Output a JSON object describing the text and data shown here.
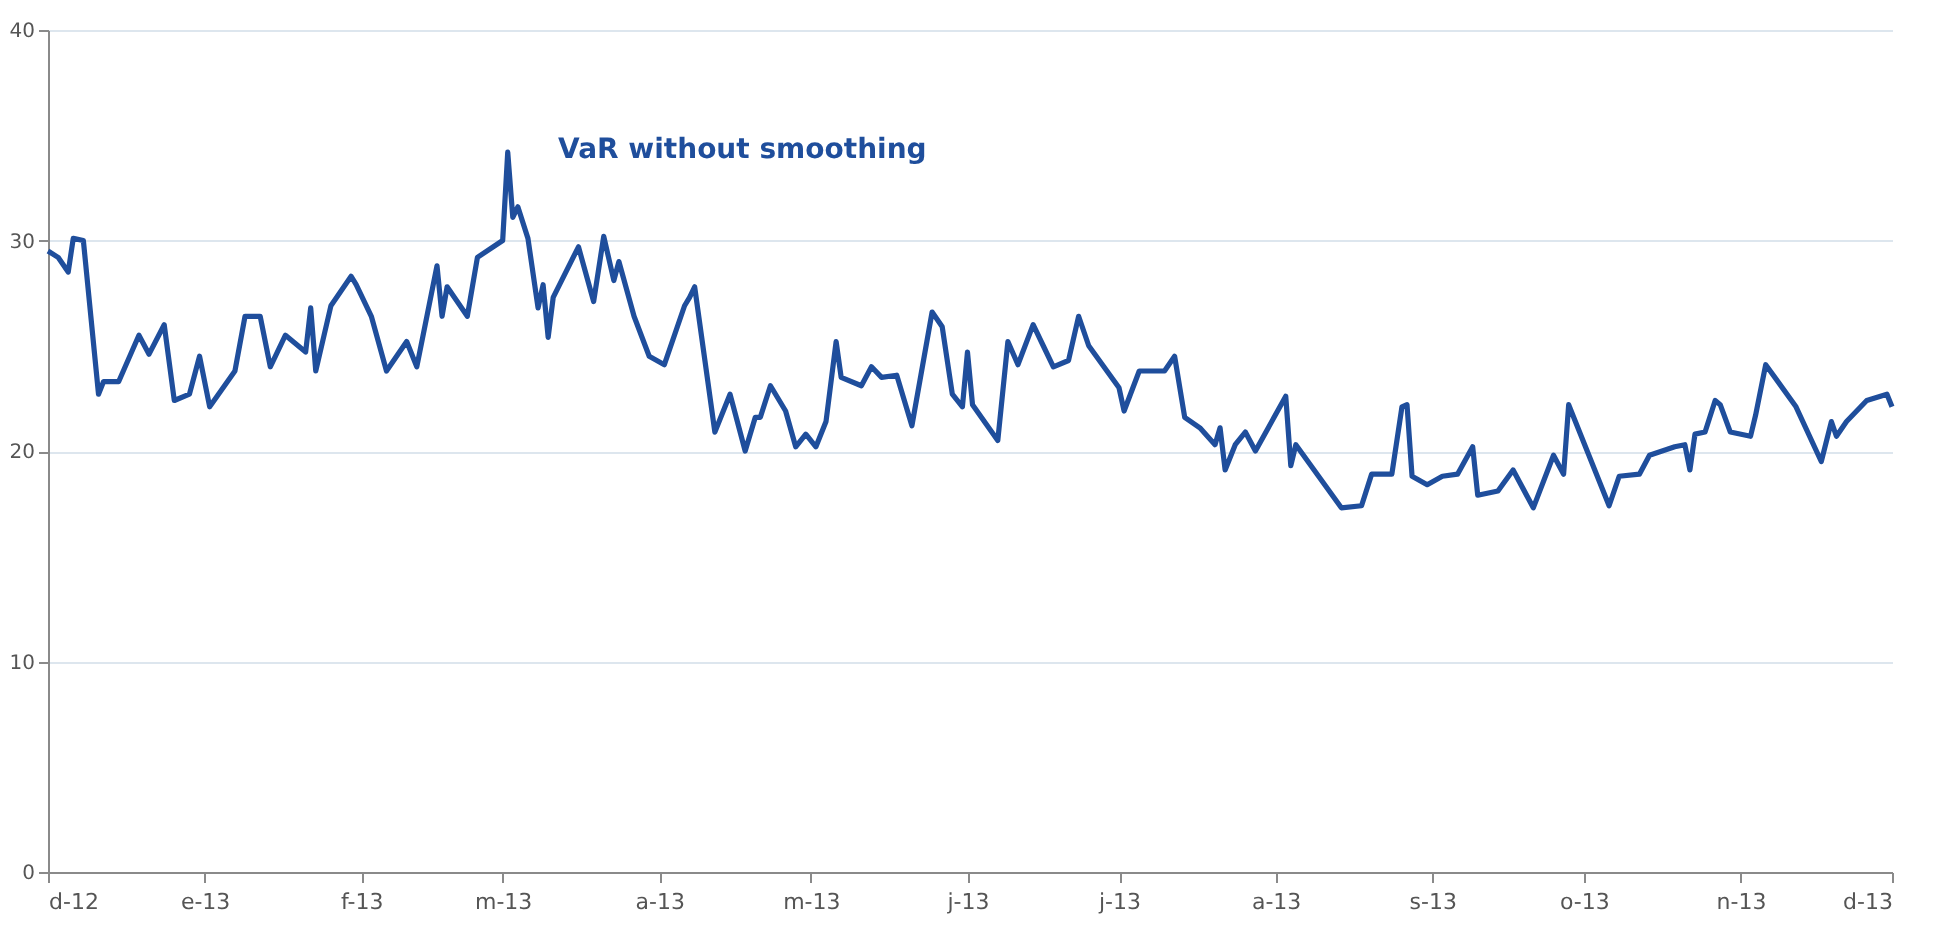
{
  "chart_data": {
    "type": "line",
    "x": [
      "2012-12-01",
      "2012-12-03",
      "2012-12-05",
      "2012-12-06",
      "2012-12-08",
      "2012-12-11",
      "2012-12-12",
      "2012-12-15",
      "2012-12-19",
      "2012-12-21",
      "2012-12-24",
      "2012-12-26",
      "2012-12-29",
      "2012-12-31",
      "2013-01-02",
      "2013-01-07",
      "2013-01-09",
      "2013-01-12",
      "2013-01-14",
      "2013-01-17",
      "2013-01-21",
      "2013-01-22",
      "2013-01-23",
      "2013-01-26",
      "2013-01-30",
      "2013-01-31",
      "2013-02-03",
      "2013-02-06",
      "2013-02-10",
      "2013-02-12",
      "2013-02-16",
      "2013-02-17",
      "2013-02-18",
      "2013-02-22",
      "2013-02-24",
      "2013-03-01",
      "2013-03-02",
      "2013-03-03",
      "2013-03-04",
      "2013-03-06",
      "2013-03-08",
      "2013-03-09",
      "2013-03-10",
      "2013-03-11",
      "2013-03-16",
      "2013-03-19",
      "2013-03-21",
      "2013-03-23",
      "2013-03-24",
      "2013-03-27",
      "2013-03-30",
      "2013-04-02",
      "2013-04-06",
      "2013-04-07",
      "2013-04-08",
      "2013-04-12",
      "2013-04-15",
      "2013-04-18",
      "2013-04-20",
      "2013-04-21",
      "2013-04-23",
      "2013-04-26",
      "2013-04-28",
      "2013-04-30",
      "2013-05-02",
      "2013-05-04",
      "2013-05-06",
      "2013-05-07",
      "2013-05-11",
      "2013-05-13",
      "2013-05-15",
      "2013-05-18",
      "2013-05-21",
      "2013-05-25",
      "2013-05-27",
      "2013-05-29",
      "2013-05-31",
      "2013-06-01",
      "2013-06-02",
      "2013-06-07",
      "2013-06-09",
      "2013-06-11",
      "2013-06-14",
      "2013-06-16",
      "2013-06-18",
      "2013-06-21",
      "2013-06-23",
      "2013-06-25",
      "2013-07-01",
      "2013-07-02",
      "2013-07-05",
      "2013-07-10",
      "2013-07-12",
      "2013-07-14",
      "2013-07-17",
      "2013-07-20",
      "2013-07-21",
      "2013-07-22",
      "2013-07-24",
      "2013-07-26",
      "2013-07-28",
      "2013-08-03",
      "2013-08-04",
      "2013-08-05",
      "2013-08-14",
      "2013-08-18",
      "2013-08-20",
      "2013-08-24",
      "2013-08-26",
      "2013-08-27",
      "2013-08-28",
      "2013-08-31",
      "2013-09-03",
      "2013-09-06",
      "2013-09-09",
      "2013-09-10",
      "2013-09-14",
      "2013-09-17",
      "2013-09-21",
      "2013-09-25",
      "2013-09-27",
      "2013-09-28",
      "2013-10-02",
      "2013-10-06",
      "2013-10-08",
      "2013-10-12",
      "2013-10-14",
      "2013-10-19",
      "2013-10-21",
      "2013-10-22",
      "2013-10-23",
      "2013-10-25",
      "2013-10-27",
      "2013-10-28",
      "2013-10-30",
      "2013-11-03",
      "2013-11-04",
      "2013-11-06",
      "2013-11-12",
      "2013-11-17",
      "2013-11-19",
      "2013-11-20",
      "2013-11-22",
      "2013-11-26",
      "2013-11-30",
      "2013-12-01"
    ],
    "series": [
      {
        "name": "VaR without smoothing",
        "color": "#1f4e9c",
        "values": [
          29.5,
          29.2,
          28.5,
          30.1,
          30,
          22.7,
          23.3,
          23.3,
          25.5,
          24.6,
          26,
          22.4,
          22.7,
          24.5,
          22.1,
          23.8,
          26.4,
          26.4,
          24,
          25.5,
          24.7,
          26.8,
          23.8,
          26.9,
          28.3,
          27.9,
          26.4,
          23.8,
          25.2,
          24,
          28.8,
          26.4,
          27.8,
          26.4,
          29.2,
          30,
          34.2,
          31.1,
          31.6,
          30.1,
          26.8,
          27.9,
          25.4,
          27.3,
          29.7,
          27.1,
          30.2,
          28.1,
          29,
          26.4,
          24.5,
          24.1,
          26.9,
          27.3,
          27.8,
          20.9,
          22.7,
          20,
          21.6,
          21.6,
          23.1,
          21.9,
          20.2,
          20.8,
          20.2,
          21.4,
          25.2,
          23.5,
          23.1,
          24,
          23.5,
          23.6,
          21.2,
          26.6,
          25.9,
          22.7,
          22.1,
          24.7,
          22.2,
          20.5,
          25.2,
          24.1,
          26,
          25,
          24,
          24.3,
          26.4,
          25,
          23,
          21.9,
          23.8,
          23.8,
          24.5,
          21.6,
          21.1,
          20.3,
          21.1,
          19.1,
          20.3,
          20.9,
          20,
          22.6,
          19.3,
          20.3,
          17.3,
          17.4,
          18.9,
          18.9,
          22.1,
          22.2,
          18.8,
          18.4,
          18.8,
          18.9,
          20.2,
          17.9,
          18.1,
          19.1,
          17.3,
          19.8,
          18.9,
          22.2,
          19.8,
          17.4,
          18.8,
          18.9,
          19.8,
          20.2,
          20.3,
          19.1,
          20.8,
          20.9,
          22.4,
          22.2,
          20.9,
          20.7,
          21.7,
          24.1,
          22.1,
          19.5,
          21.4,
          20.7,
          21.4,
          22.4,
          22.7,
          22.1
        ]
      }
    ],
    "xlim": [
      "2012-12-01",
      "2013-12-01"
    ],
    "xticks": [
      {
        "value": "2012-12-01",
        "label": "d-12"
      },
      {
        "value": "2013-01-01",
        "label": "e-13"
      },
      {
        "value": "2013-02-01",
        "label": "f-13"
      },
      {
        "value": "2013-03-01",
        "label": "m-13"
      },
      {
        "value": "2013-04-01",
        "label": "a-13"
      },
      {
        "value": "2013-05-01",
        "label": "m-13"
      },
      {
        "value": "2013-06-01",
        "label": "j-13"
      },
      {
        "value": "2013-07-01",
        "label": "j-13"
      },
      {
        "value": "2013-08-01",
        "label": "a-13"
      },
      {
        "value": "2013-09-01",
        "label": "s-13"
      },
      {
        "value": "2013-10-01",
        "label": "o-13"
      },
      {
        "value": "2013-11-01",
        "label": "n-13"
      },
      {
        "value": "2013-12-01",
        "label": "d-13"
      }
    ],
    "ylim": [
      0,
      40
    ],
    "yticks": [
      0,
      10,
      20,
      30,
      40
    ],
    "grid": "y",
    "marker": "none",
    "line_style": "solid"
  }
}
